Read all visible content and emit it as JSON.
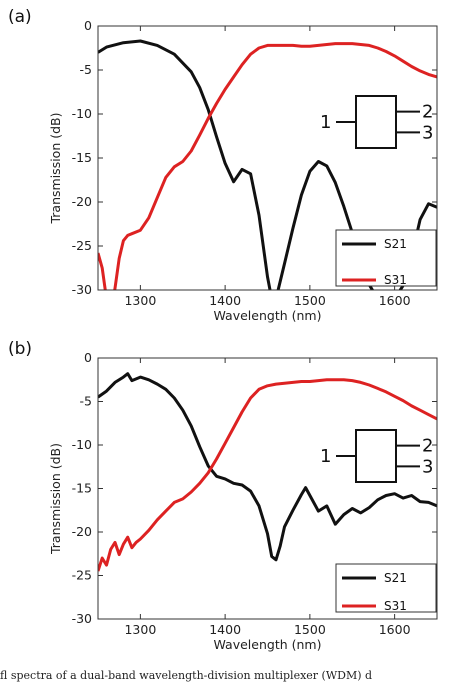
{
  "caption": "fl spectra of a dual-band wavelength-division multiplexer (WDM) d",
  "chart_data": [
    {
      "type": "line",
      "panel_label": "(a)",
      "xlabel": "Wavelength (nm)",
      "ylabel": "Transmission (dB)",
      "xlim": [
        1250,
        1650
      ],
      "ylim": [
        -30,
        0
      ],
      "xticks": [
        1300,
        1400,
        1500,
        1600
      ],
      "yticks": [
        0,
        -5,
        -10,
        -15,
        -20,
        -25,
        -30
      ],
      "grid": false,
      "legend_position": "bottom-right",
      "inset_ports": [
        "1",
        "2",
        "3"
      ],
      "series": [
        {
          "name": "S21",
          "color": "#111111",
          "x": [
            1250,
            1260,
            1280,
            1300,
            1320,
            1340,
            1360,
            1370,
            1380,
            1390,
            1400,
            1410,
            1420,
            1430,
            1440,
            1450,
            1455,
            1460,
            1470,
            1480,
            1490,
            1500,
            1510,
            1520,
            1530,
            1540,
            1550,
            1560,
            1570,
            1580,
            1590,
            1600,
            1610,
            1620,
            1630,
            1640,
            1650
          ],
          "y": [
            -3,
            -2.4,
            -1.9,
            -1.7,
            -2.2,
            -3.2,
            -5.2,
            -7.0,
            -9.5,
            -12.6,
            -15.6,
            -17.7,
            -16.3,
            -16.8,
            -21.5,
            -28.5,
            -31,
            -31,
            -27,
            -23,
            -19.2,
            -16.5,
            -15.4,
            -15.9,
            -17.8,
            -20.5,
            -23.5,
            -26.6,
            -29.4,
            -31,
            -31,
            -31,
            -29.5,
            -26.2,
            -22.0,
            -20.2,
            -20.6
          ]
        },
        {
          "name": "S31",
          "color": "#dd2222",
          "x": [
            1250,
            1255,
            1260,
            1263,
            1266,
            1268,
            1270,
            1275,
            1280,
            1285,
            1290,
            1300,
            1310,
            1320,
            1330,
            1340,
            1350,
            1360,
            1370,
            1380,
            1390,
            1400,
            1410,
            1420,
            1430,
            1440,
            1450,
            1460,
            1470,
            1480,
            1490,
            1500,
            1510,
            1520,
            1530,
            1540,
            1550,
            1560,
            1570,
            1580,
            1590,
            1600,
            1610,
            1620,
            1630,
            1640,
            1650
          ],
          "y": [
            -25.8,
            -27.5,
            -31,
            -31,
            -31,
            -31,
            -29.8,
            -26.4,
            -24.4,
            -23.8,
            -23.6,
            -23.2,
            -21.8,
            -19.5,
            -17.2,
            -16.0,
            -15.4,
            -14.2,
            -12.4,
            -10.5,
            -8.8,
            -7.2,
            -5.8,
            -4.4,
            -3.2,
            -2.5,
            -2.2,
            -2.2,
            -2.2,
            -2.2,
            -2.3,
            -2.3,
            -2.2,
            -2.1,
            -2.0,
            -2.0,
            -2.0,
            -2.1,
            -2.2,
            -2.5,
            -2.9,
            -3.4,
            -4.0,
            -4.6,
            -5.1,
            -5.5,
            -5.8
          ]
        }
      ]
    },
    {
      "type": "line",
      "panel_label": "(b)",
      "xlabel": "Wavelength (nm)",
      "ylabel": "Transmission (dB)",
      "xlim": [
        1250,
        1650
      ],
      "ylim": [
        -30,
        0
      ],
      "xticks": [
        1300,
        1400,
        1500,
        1600
      ],
      "yticks": [
        0,
        -5,
        -10,
        -15,
        -20,
        -25,
        -30
      ],
      "grid": false,
      "legend_position": "bottom-right",
      "inset_ports": [
        "1",
        "2",
        "3"
      ],
      "series": [
        {
          "name": "S21",
          "color": "#111111",
          "x": [
            1250,
            1260,
            1270,
            1280,
            1285,
            1290,
            1300,
            1310,
            1320,
            1330,
            1340,
            1350,
            1360,
            1370,
            1380,
            1390,
            1400,
            1410,
            1420,
            1430,
            1440,
            1450,
            1455,
            1460,
            1465,
            1470,
            1480,
            1490,
            1495,
            1500,
            1510,
            1520,
            1530,
            1540,
            1550,
            1560,
            1570,
            1580,
            1590,
            1600,
            1610,
            1620,
            1630,
            1640,
            1650
          ],
          "y": [
            -4.5,
            -3.8,
            -2.8,
            -2.2,
            -1.8,
            -2.6,
            -2.2,
            -2.5,
            -3.0,
            -3.6,
            -4.6,
            -6.0,
            -7.8,
            -10.2,
            -12.4,
            -13.6,
            -13.9,
            -14.4,
            -14.6,
            -15.3,
            -17.0,
            -20.2,
            -22.8,
            -23.2,
            -21.6,
            -19.4,
            -17.5,
            -15.7,
            -14.9,
            -15.8,
            -17.6,
            -17.0,
            -19.1,
            -18.0,
            -17.3,
            -17.8,
            -17.2,
            -16.3,
            -15.8,
            -15.6,
            -16.1,
            -15.8,
            -16.5,
            -16.6,
            -17.0
          ]
        },
        {
          "name": "S31",
          "color": "#dd2222",
          "x": [
            1250,
            1255,
            1260,
            1265,
            1270,
            1275,
            1280,
            1285,
            1290,
            1295,
            1300,
            1310,
            1320,
            1330,
            1340,
            1350,
            1360,
            1370,
            1380,
            1390,
            1400,
            1410,
            1420,
            1430,
            1440,
            1450,
            1460,
            1470,
            1480,
            1490,
            1500,
            1510,
            1520,
            1530,
            1540,
            1550,
            1560,
            1570,
            1580,
            1590,
            1600,
            1610,
            1620,
            1630,
            1640,
            1650
          ],
          "y": [
            -24.5,
            -23.0,
            -23.8,
            -22.0,
            -21.2,
            -22.6,
            -21.4,
            -20.6,
            -21.8,
            -21.2,
            -20.8,
            -19.8,
            -18.6,
            -17.6,
            -16.6,
            -16.2,
            -15.4,
            -14.4,
            -13.2,
            -11.6,
            -9.8,
            -8.0,
            -6.2,
            -4.6,
            -3.6,
            -3.2,
            -3.0,
            -2.9,
            -2.8,
            -2.7,
            -2.7,
            -2.6,
            -2.5,
            -2.5,
            -2.5,
            -2.6,
            -2.8,
            -3.1,
            -3.5,
            -3.9,
            -4.4,
            -4.9,
            -5.5,
            -6.0,
            -6.5,
            -7.0
          ]
        }
      ]
    }
  ]
}
